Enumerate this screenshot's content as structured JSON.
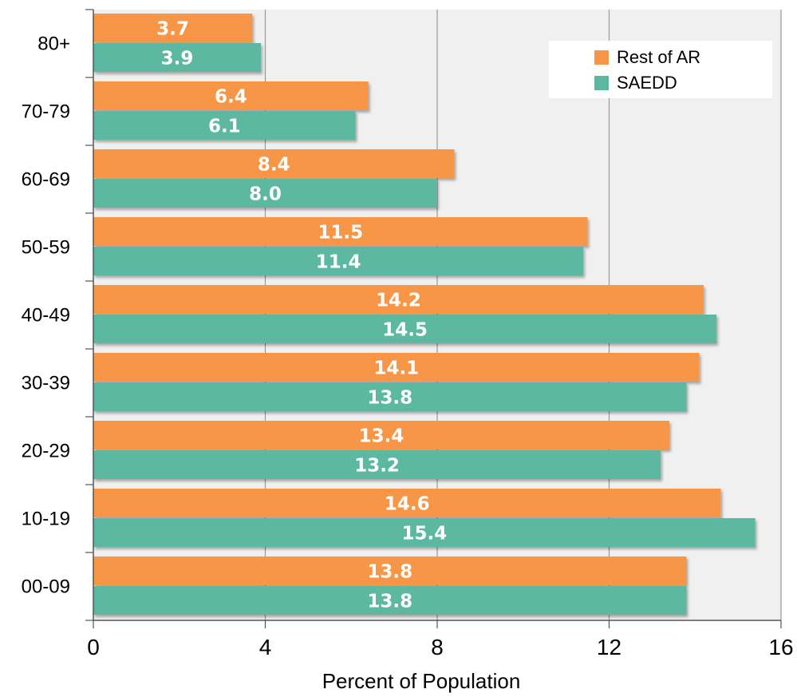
{
  "chart_data": {
    "type": "bar",
    "orientation": "horizontal",
    "categories": [
      "80+",
      "70-79",
      "60-69",
      "50-59",
      "40-49",
      "30-39",
      "20-29",
      "10-19",
      "00-09"
    ],
    "series": [
      {
        "name": "Rest of AR",
        "color": "#F79646",
        "values": [
          3.7,
          6.4,
          8.4,
          11.5,
          14.2,
          14.1,
          13.4,
          14.6,
          13.8
        ],
        "labels": [
          "3.7",
          "6.4",
          "8.4",
          "11.5",
          "14.2",
          "14.1",
          "13.4",
          "14.6",
          "13.8"
        ]
      },
      {
        "name": "SAEDD",
        "color": "#5BB8A0",
        "values": [
          3.9,
          6.1,
          8.0,
          11.4,
          14.5,
          13.8,
          13.2,
          15.4,
          13.8
        ],
        "labels": [
          "3.9",
          "6.1",
          "8.0",
          "11.4",
          "14.5",
          "13.8",
          "13.2",
          "15.4",
          "13.8"
        ]
      }
    ],
    "xlim": [
      0,
      16
    ],
    "x_ticks": [
      0,
      4,
      8,
      12,
      16
    ],
    "x_tick_labels": [
      "0",
      "4",
      "8",
      "12",
      "16"
    ],
    "xlabel": "Percent of Population",
    "ylabel": "",
    "title": "",
    "grid": true,
    "legend_position": "top-right",
    "plot_background": "#F0F0F0",
    "grid_color": "#999999"
  }
}
